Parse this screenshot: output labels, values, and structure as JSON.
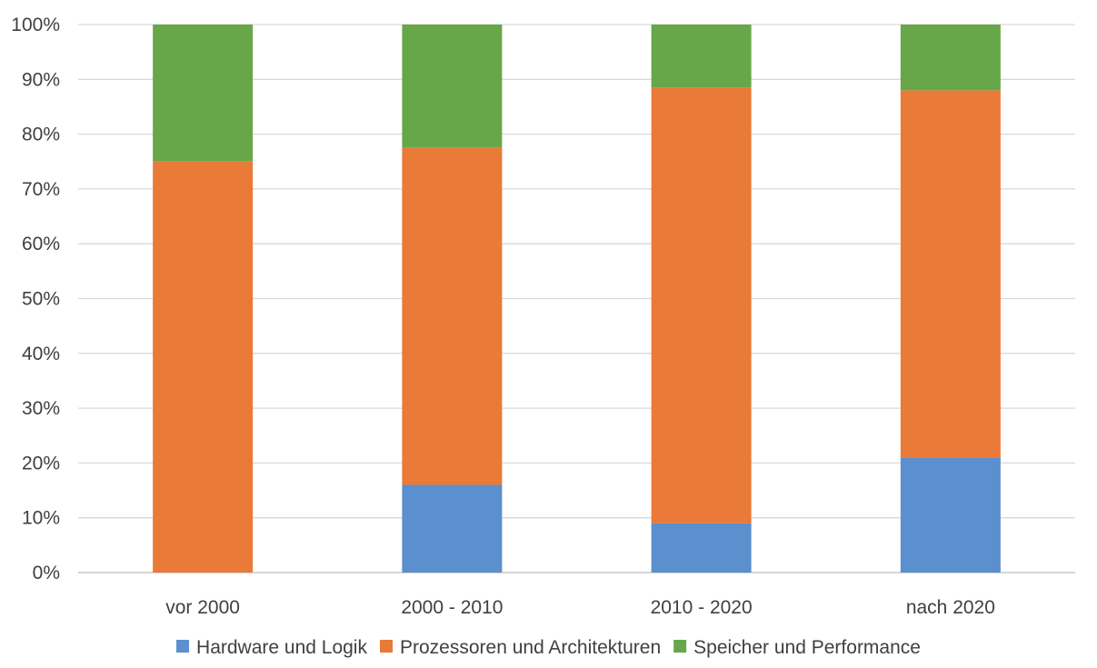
{
  "chart_data": {
    "type": "bar",
    "stacked": true,
    "normalized": true,
    "title": "",
    "xlabel": "",
    "ylabel": "",
    "categories": [
      "vor 2000",
      "2000 - 2010",
      "2010 - 2020",
      "nach 2020"
    ],
    "series": [
      {
        "name": "Hardware und Logik",
        "color": "#5B8FCD",
        "values": [
          0,
          16,
          9,
          21
        ]
      },
      {
        "name": "Prozessoren und Architekturen",
        "color": "#E97A38",
        "values": [
          75,
          61.5,
          79.5,
          67
        ]
      },
      {
        "name": "Speicher und Performance",
        "color": "#67A74A",
        "values": [
          25,
          22.5,
          11.5,
          12
        ]
      }
    ],
    "ylim": [
      0,
      100
    ],
    "yticks": [
      0,
      10,
      20,
      30,
      40,
      50,
      60,
      70,
      80,
      90,
      100
    ],
    "ytick_labels": [
      "0%",
      "10%",
      "20%",
      "30%",
      "40%",
      "50%",
      "60%",
      "70%",
      "80%",
      "90%",
      "100%"
    ],
    "grid": true,
    "legend": "bottom"
  }
}
